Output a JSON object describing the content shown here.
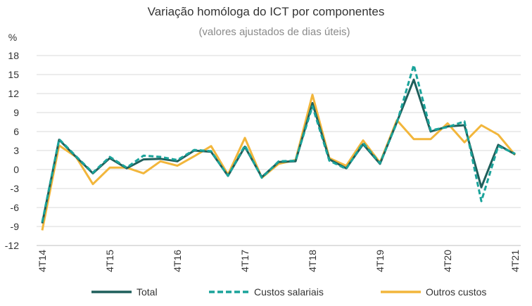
{
  "chart_data": {
    "type": "line",
    "title": "Variação homóloga do ICT por componentes",
    "subtitle": "(valores ajustados de dias úteis)",
    "ylabel": "%",
    "xlabel": "",
    "ylim": [
      -12,
      18
    ],
    "yticks": [
      "-12",
      "-9",
      "-6",
      "-3",
      "0",
      "3",
      "6",
      "9",
      "12",
      "15",
      "18"
    ],
    "x": [
      "4T14",
      "1T15",
      "2T15",
      "3T15",
      "4T15",
      "1T16",
      "2T16",
      "3T16",
      "4T16",
      "1T17",
      "2T17",
      "3T17",
      "4T17",
      "1T18",
      "2T18",
      "3T18",
      "4T18",
      "1T19",
      "2T19",
      "3T19",
      "4T19",
      "1T20",
      "2T20",
      "3T20",
      "4T20",
      "1T21",
      "2T21",
      "3T21",
      "4T21"
    ],
    "xtick_labels": [
      {
        "index": 0,
        "label": "4T14"
      },
      {
        "index": 4,
        "label": "4T15"
      },
      {
        "index": 8,
        "label": "4T16"
      },
      {
        "index": 12,
        "label": "4T17"
      },
      {
        "index": 16,
        "label": "4T18"
      },
      {
        "index": 20,
        "label": "4T19"
      },
      {
        "index": 24,
        "label": "4T20"
      },
      {
        "index": 28,
        "label": "4T21"
      }
    ],
    "grid": "horizontal",
    "legend_position": "bottom",
    "series": [
      {
        "name": "Total",
        "style": "solid",
        "color": "#1f5f5b",
        "values": [
          -8.5,
          4.7,
          2.0,
          -0.6,
          1.8,
          0.2,
          1.6,
          1.7,
          1.3,
          3.0,
          2.8,
          -1.0,
          3.6,
          -1.2,
          1.2,
          1.3,
          10.5,
          1.6,
          0.2,
          4.0,
          0.9,
          7.5,
          14.2,
          6.0,
          6.8,
          7.0,
          -2.8,
          3.9,
          2.4
        ]
      },
      {
        "name": "Custos salariais",
        "style": "dashed",
        "color": "#1aa39a",
        "values": [
          -8.3,
          4.8,
          2.1,
          -0.5,
          2.0,
          0.3,
          2.2,
          2.0,
          1.5,
          3.1,
          2.9,
          -1.0,
          3.8,
          -1.3,
          1.3,
          1.4,
          10.0,
          1.4,
          0.1,
          4.2,
          1.0,
          7.4,
          16.5,
          6.2,
          6.7,
          7.6,
          -5.0,
          3.7,
          2.5
        ]
      },
      {
        "name": "Outros custos",
        "style": "solid",
        "color": "#f2b63b",
        "values": [
          -9.6,
          3.8,
          2.0,
          -2.3,
          0.3,
          0.3,
          -0.6,
          1.3,
          0.6,
          2.1,
          3.7,
          -0.8,
          5.0,
          -1.3,
          0.9,
          1.5,
          11.8,
          1.8,
          0.6,
          4.6,
          1.1,
          7.8,
          4.8,
          4.8,
          7.3,
          4.3,
          7.0,
          5.5,
          2.3
        ]
      }
    ]
  }
}
